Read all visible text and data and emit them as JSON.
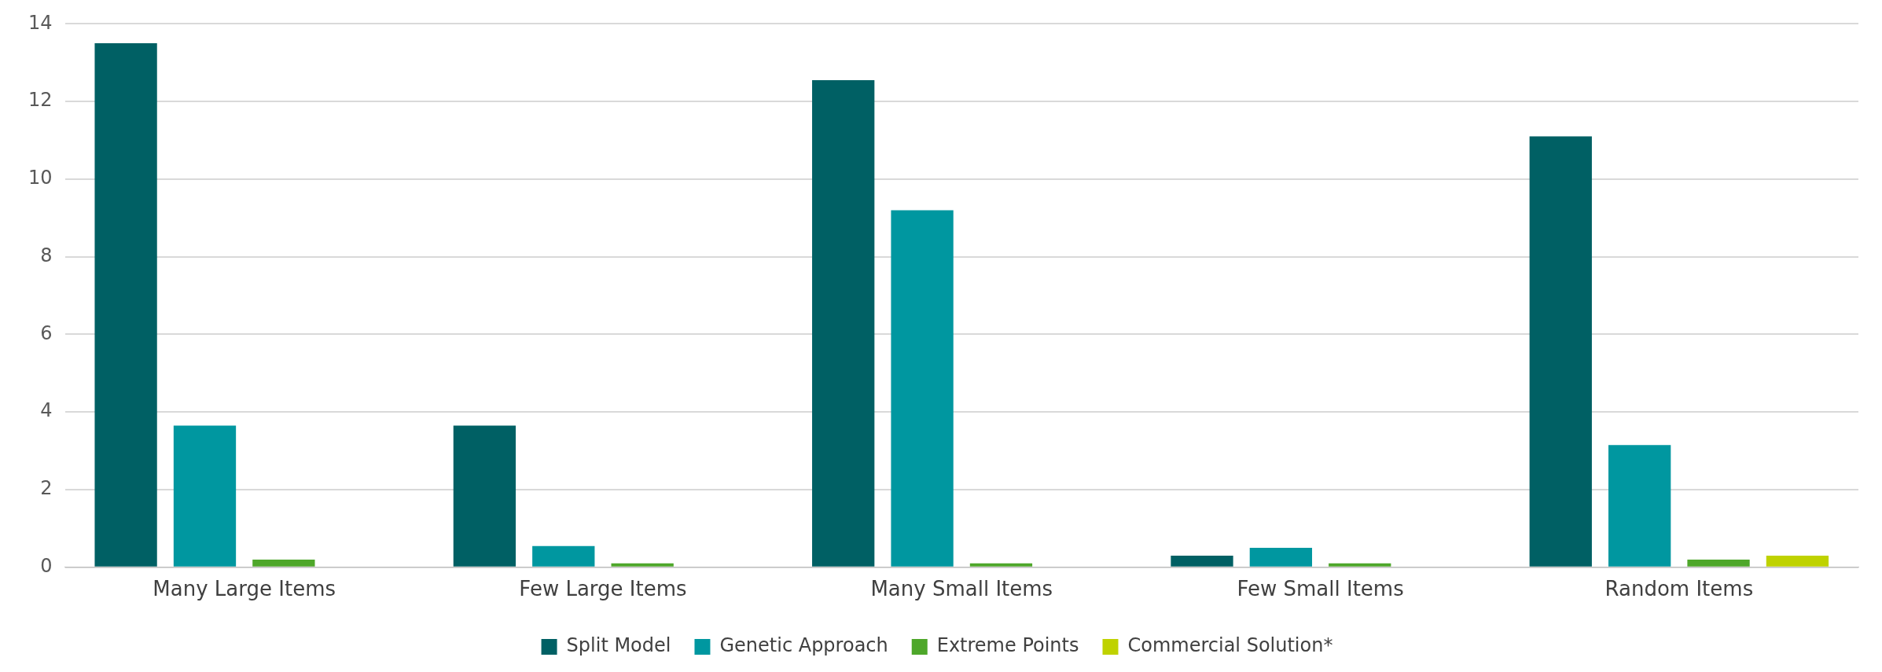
{
  "chart_data": {
    "type": "bar",
    "categories": [
      "Many Large Items",
      "Few Large Items",
      "Many Small Items",
      "Few Small Items",
      "Random Items"
    ],
    "series": [
      {
        "name": "Split Model",
        "color": "#006064",
        "values": [
          13.5,
          3.65,
          12.55,
          0.3,
          11.1
        ]
      },
      {
        "name": "Genetic Approach",
        "color": "#0097a0",
        "values": [
          3.65,
          0.55,
          9.2,
          0.5,
          3.15
        ]
      },
      {
        "name": "Extreme Points",
        "color": "#4ea72a",
        "values": [
          0.2,
          0.1,
          0.1,
          0.1,
          0.2
        ]
      },
      {
        "name": "Commercial Solution*",
        "color": "#bfd200",
        "values": [
          null,
          null,
          null,
          null,
          0.3
        ]
      }
    ],
    "ylim": [
      0,
      14
    ],
    "yticks": [
      0,
      2,
      4,
      6,
      8,
      10,
      12,
      14
    ],
    "grid": "y",
    "legend": "bottom"
  }
}
